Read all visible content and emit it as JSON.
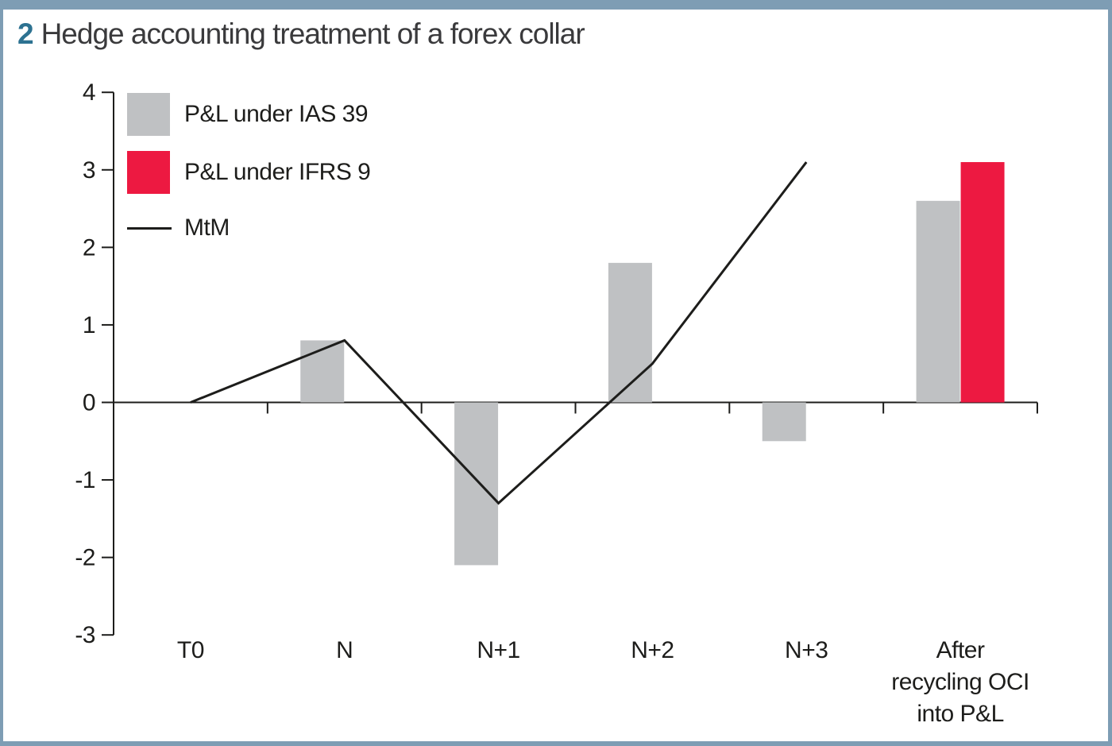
{
  "title": {
    "number": "2",
    "text": "Hedge accounting treatment of a forex collar"
  },
  "colors": {
    "frame_border": "#7e9db4",
    "title_number": "#2d7291",
    "title_text": "#3a3a3c",
    "ink": "#1d1d1b",
    "background": "#ffffff",
    "gray_bar": "#bfc1c3",
    "red_bar": "#ed1941"
  },
  "chart_data": {
    "type": "bar",
    "subtype": "grouped bars with overlaid line",
    "categories": [
      "T0",
      "N",
      "N+1",
      "N+2",
      "N+3",
      "After\nrecycling OCI\ninto P&L"
    ],
    "series": [
      {
        "name": "P&L under IAS 39",
        "type": "bar",
        "color": "#bfc1c3",
        "values": [
          null,
          0.8,
          -2.1,
          1.8,
          -0.5,
          2.6
        ]
      },
      {
        "name": "P&L under IFRS 9",
        "type": "bar",
        "color": "#ed1941",
        "values": [
          null,
          null,
          null,
          null,
          null,
          3.1
        ]
      },
      {
        "name": "MtM",
        "type": "line",
        "color": "#1d1d1b",
        "values": [
          0,
          0.8,
          -1.3,
          0.5,
          3.1,
          null
        ]
      }
    ],
    "ylim": [
      -3,
      4
    ],
    "yticks": [
      4,
      3,
      2,
      1,
      0,
      -1,
      -2,
      -3
    ],
    "xlabel": "",
    "ylabel": "",
    "grid": false,
    "legend_position": "top-left",
    "baseline": 0
  }
}
